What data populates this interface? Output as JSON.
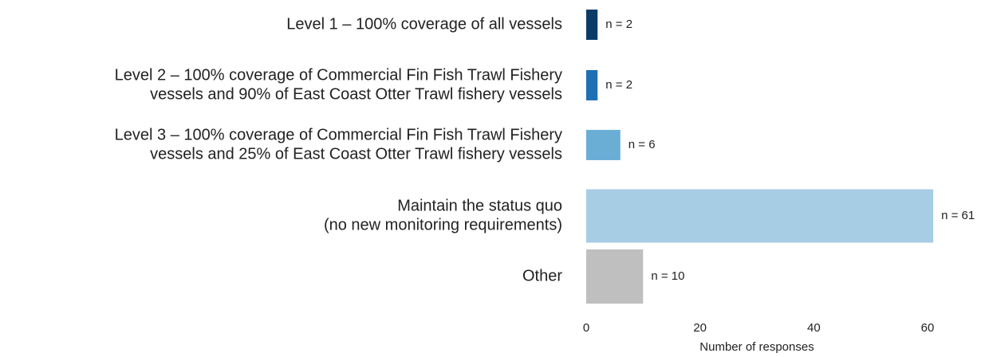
{
  "chart_data": {
    "type": "barh",
    "categories": [
      [
        "Level 1 – 100% coverage of all vessels"
      ],
      [
        "Level 2 – 100% coverage of Commercial Fin Fish Trawl Fishery",
        "vessels and 90% of East Coast Otter Trawl fishery vessels"
      ],
      [
        "Level 3 – 100% coverage of Commercial Fin Fish Trawl Fishery",
        "vessels and 25% of East Coast Otter Trawl fishery vessels"
      ],
      [
        "Maintain the status quo",
        "(no new monitoring requirements)"
      ],
      [
        "Other"
      ]
    ],
    "values": [
      2,
      2,
      6,
      61,
      10
    ],
    "value_labels": [
      "n = 2",
      "n = 2",
      "n = 6",
      "n = 61",
      "n = 10"
    ],
    "colors": [
      "#0b3c68",
      "#1f6fb4",
      "#6aaed6",
      "#a6cde3",
      "#bfbfbf"
    ],
    "xlim": [
      0,
      65
    ],
    "xticks": [
      0,
      20,
      40,
      60
    ],
    "xlabel": "Number of responses"
  }
}
